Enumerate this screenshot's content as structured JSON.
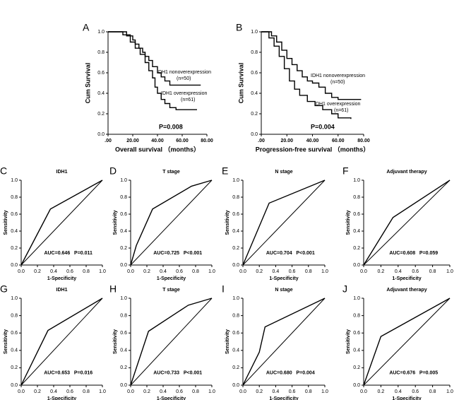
{
  "chart_data": [
    {
      "type": "km",
      "label": "A",
      "xlabel": "Overall survival （months）",
      "ylabel": "Cum Survival",
      "xlim": [
        0,
        80
      ],
      "ylim": [
        0,
        1
      ],
      "xticks": [
        {
          "value": 0,
          "label": ".00"
        },
        {
          "value": 20,
          "label": "20.00"
        },
        {
          "value": 40,
          "label": "40.00"
        },
        {
          "value": 60,
          "label": "60.00"
        },
        {
          "value": 80,
          "label": "80.00"
        }
      ],
      "yticks": [
        {
          "value": 0,
          "label": "0.0"
        },
        0.2,
        0.4,
        0.6,
        0.8,
        {
          "value": 1,
          "label": "1.0"
        }
      ],
      "series": [
        {
          "name": "IDH1 nonoverexpression",
          "note": "(n=50)",
          "color": "#000000",
          "x": [
            0,
            15,
            20,
            22,
            25,
            28,
            30,
            33,
            36,
            40,
            43,
            46,
            50,
            75
          ],
          "values": [
            1.0,
            0.96,
            0.92,
            0.88,
            0.84,
            0.8,
            0.76,
            0.72,
            0.66,
            0.6,
            0.56,
            0.52,
            0.48,
            0.48
          ]
        },
        {
          "name": "IDH1 overexpression",
          "note": "(n=61)",
          "color": "#000000",
          "x": [
            0,
            12,
            18,
            22,
            26,
            30,
            33,
            36,
            38,
            40,
            43,
            46,
            50,
            55,
            72
          ],
          "values": [
            1.0,
            0.97,
            0.9,
            0.84,
            0.78,
            0.7,
            0.62,
            0.55,
            0.46,
            0.4,
            0.34,
            0.3,
            0.26,
            0.24,
            0.24
          ]
        }
      ],
      "annotation": "P=0.008"
    },
    {
      "type": "km",
      "label": "B",
      "xlabel": "Progression-free survival （months）",
      "ylabel": "Cum Survival",
      "xlim": [
        0,
        80
      ],
      "ylim": [
        0,
        1
      ],
      "xticks": [
        {
          "value": 0,
          "label": ".00"
        },
        {
          "value": 20,
          "label": "20.00"
        },
        {
          "value": 40,
          "label": "40.00"
        },
        {
          "value": 60,
          "label": "60.00"
        },
        {
          "value": 80,
          "label": "80.00"
        }
      ],
      "yticks": [
        {
          "value": 0,
          "label": "0.0"
        },
        0.2,
        0.4,
        0.6,
        0.8,
        {
          "value": 1,
          "label": "1.0"
        }
      ],
      "series": [
        {
          "name": "IDH1 nonoverexpression",
          "note": "(n=50)",
          "color": "#000000",
          "x": [
            0,
            8,
            12,
            16,
            20,
            24,
            28,
            32,
            36,
            40,
            45,
            50,
            55,
            60,
            78
          ],
          "values": [
            1.0,
            0.96,
            0.9,
            0.82,
            0.74,
            0.68,
            0.62,
            0.56,
            0.52,
            0.5,
            0.46,
            0.4,
            0.36,
            0.34,
            0.34
          ]
        },
        {
          "name": "IDH1 overexpression",
          "note": "(n=61)",
          "color": "#000000",
          "x": [
            0,
            6,
            10,
            14,
            18,
            22,
            26,
            30,
            36,
            42,
            48,
            55,
            60,
            70
          ],
          "values": [
            1.0,
            0.94,
            0.86,
            0.76,
            0.64,
            0.52,
            0.44,
            0.38,
            0.32,
            0.28,
            0.24,
            0.2,
            0.16,
            0.15
          ]
        }
      ],
      "annotation": "P=0.004"
    },
    {
      "type": "roc",
      "label": "C",
      "title": "IDH1",
      "xlabel": "1-Specificity",
      "ylabel": "Sensitivity",
      "xlim": [
        0,
        1
      ],
      "ylim": [
        0,
        1
      ],
      "xticks": [
        {
          "value": 0,
          "label": "0.0"
        },
        0.2,
        0.4,
        0.6,
        0.8,
        {
          "value": 1,
          "label": "1.0"
        }
      ],
      "yticks": [
        {
          "value": 0,
          "label": "0.0"
        },
        0.2,
        0.4,
        0.6,
        0.8,
        {
          "value": 1,
          "label": "1.0"
        }
      ],
      "series": [
        {
          "color": "#000000",
          "x": [
            0,
            0.36,
            1
          ],
          "values": [
            0,
            0.66,
            1
          ]
        }
      ],
      "annotation": "AUC=0.646   P=0.011"
    },
    {
      "type": "roc",
      "label": "D",
      "title": "T stage",
      "xlabel": "1-Specificity",
      "ylabel": "Sensitivity",
      "xlim": [
        0,
        1
      ],
      "ylim": [
        0,
        1
      ],
      "xticks": [
        {
          "value": 0,
          "label": "0.0"
        },
        0.2,
        0.4,
        0.6,
        0.8,
        {
          "value": 1,
          "label": "1.0"
        }
      ],
      "yticks": [
        {
          "value": 0,
          "label": "0.0"
        },
        0.2,
        0.4,
        0.6,
        0.8,
        {
          "value": 1,
          "label": "1.0"
        }
      ],
      "series": [
        {
          "color": "#000000",
          "x": [
            0,
            0.07,
            0.27,
            0.75,
            1
          ],
          "values": [
            0,
            0.23,
            0.66,
            0.93,
            1
          ]
        }
      ],
      "annotation": "AUC=0.725   P<0.001"
    },
    {
      "type": "roc",
      "label": "E",
      "title": "N stage",
      "xlabel": "1-Specificity",
      "ylabel": "Sensitivity",
      "xlim": [
        0,
        1
      ],
      "ylim": [
        0,
        1
      ],
      "xticks": [
        {
          "value": 0,
          "label": "0.0"
        },
        0.2,
        0.4,
        0.6,
        0.8,
        {
          "value": 1,
          "label": "1.0"
        }
      ],
      "yticks": [
        {
          "value": 0,
          "label": "0.0"
        },
        0.2,
        0.4,
        0.6,
        0.8,
        {
          "value": 1,
          "label": "1.0"
        }
      ],
      "series": [
        {
          "color": "#000000",
          "x": [
            0,
            0.32,
            1
          ],
          "values": [
            0,
            0.73,
            1
          ]
        }
      ],
      "annotation": "AUC=0.704   P<0.001"
    },
    {
      "type": "roc",
      "label": "F",
      "title": "Adjuvant therapy",
      "xlabel": "1-Specificity",
      "ylabel": "Sensitivity",
      "xlim": [
        0,
        1
      ],
      "ylim": [
        0,
        1
      ],
      "xticks": [
        {
          "value": 0,
          "label": "0.0"
        },
        0.2,
        0.4,
        0.6,
        0.8,
        {
          "value": 1,
          "label": "1.0"
        }
      ],
      "yticks": [
        {
          "value": 0,
          "label": "0.0"
        },
        0.2,
        0.4,
        0.6,
        0.8,
        {
          "value": 1,
          "label": "1.0"
        }
      ],
      "series": [
        {
          "color": "#000000",
          "x": [
            0,
            0.34,
            1
          ],
          "values": [
            0,
            0.56,
            1
          ]
        }
      ],
      "annotation": "AUC=0.608   P=0.059"
    },
    {
      "type": "roc",
      "label": "G",
      "title": "IDH1",
      "xlabel": "1-Specificity",
      "ylabel": "Sensitivity",
      "xlim": [
        0,
        1
      ],
      "ylim": [
        0,
        1
      ],
      "xticks": [
        {
          "value": 0,
          "label": "0.0"
        },
        0.2,
        0.4,
        0.6,
        0.8,
        {
          "value": 1,
          "label": "1.0"
        }
      ],
      "yticks": [
        {
          "value": 0,
          "label": "0.0"
        },
        0.2,
        0.4,
        0.6,
        0.8,
        {
          "value": 1,
          "label": "1.0"
        }
      ],
      "series": [
        {
          "color": "#000000",
          "x": [
            0,
            0.33,
            1
          ],
          "values": [
            0,
            0.63,
            1
          ]
        }
      ],
      "annotation": "AUC=0.653   P=0.016"
    },
    {
      "type": "roc",
      "label": "H",
      "title": "T stage",
      "xlabel": "1-Specificity",
      "ylabel": "Sensitivity",
      "xlim": [
        0,
        1
      ],
      "ylim": [
        0,
        1
      ],
      "xticks": [
        {
          "value": 0,
          "label": "0.0"
        },
        0.2,
        0.4,
        0.6,
        0.8,
        {
          "value": 1,
          "label": "1.0"
        }
      ],
      "yticks": [
        {
          "value": 0,
          "label": "0.0"
        },
        0.2,
        0.4,
        0.6,
        0.8,
        {
          "value": 1,
          "label": "1.0"
        }
      ],
      "series": [
        {
          "color": "#000000",
          "x": [
            0,
            0.22,
            0.71,
            1
          ],
          "values": [
            0,
            0.62,
            0.92,
            1
          ]
        }
      ],
      "annotation": "AUC=0.733   P<0.001"
    },
    {
      "type": "roc",
      "label": "I",
      "title": "N stage",
      "xlabel": "1-Specificity",
      "ylabel": "Sensitivity",
      "xlim": [
        0,
        1
      ],
      "ylim": [
        0,
        1
      ],
      "xticks": [
        {
          "value": 0,
          "label": "0.0"
        },
        0.2,
        0.4,
        0.6,
        0.8,
        {
          "value": 1,
          "label": "1.0"
        }
      ],
      "yticks": [
        {
          "value": 0,
          "label": "0.0"
        },
        0.2,
        0.4,
        0.6,
        0.8,
        {
          "value": 1,
          "label": "1.0"
        }
      ],
      "series": [
        {
          "color": "#000000",
          "x": [
            0,
            0.2,
            0.27,
            1
          ],
          "values": [
            0,
            0.38,
            0.67,
            1
          ]
        }
      ],
      "annotation": "AUC=0.680   P=0.004"
    },
    {
      "type": "roc",
      "label": "J",
      "title": "Adjuvant therapy",
      "xlabel": "1-Specificity",
      "ylabel": "Sensitivity",
      "xlim": [
        0,
        1
      ],
      "ylim": [
        0,
        1
      ],
      "xticks": [
        {
          "value": 0,
          "label": "0.0"
        },
        0.2,
        0.4,
        0.6,
        0.8,
        {
          "value": 1,
          "label": "1.0"
        }
      ],
      "yticks": [
        {
          "value": 0,
          "label": "0.0"
        },
        0.2,
        0.4,
        0.6,
        0.8,
        {
          "value": 1,
          "label": "1.0"
        }
      ],
      "series": [
        {
          "color": "#000000",
          "x": [
            0,
            0.2,
            1
          ],
          "values": [
            0,
            0.56,
            1
          ]
        }
      ],
      "annotation": "AUC=0.676   P=0.005"
    }
  ]
}
